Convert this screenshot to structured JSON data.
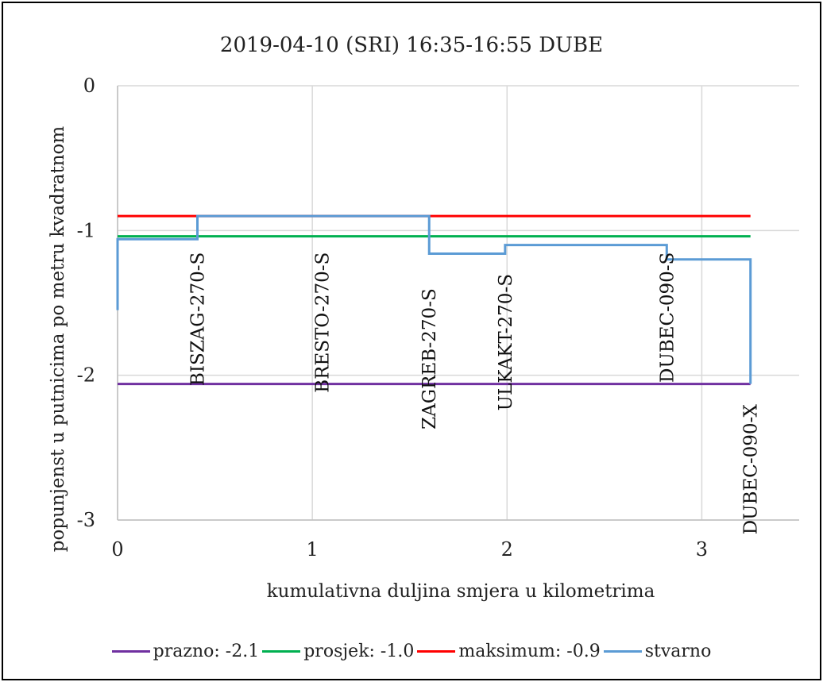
{
  "chart_data": {
    "type": "line",
    "title": "2019-04-10 (SRI) 16:35-16:55 DUBE",
    "xlabel": "kumulativna duljina smjera u kilometrima",
    "ylabel": "popunjenst u putnicima po metru kvadratnom",
    "xlim": [
      0,
      3.5
    ],
    "ylim": [
      -3,
      0
    ],
    "xticks": [
      0,
      1,
      2,
      3
    ],
    "xtick_labels": [
      "0",
      "1",
      "2",
      "3"
    ],
    "yticks": [
      0,
      -1,
      -2,
      -3
    ],
    "ytick_labels": [
      "0",
      "-1",
      "-2",
      "-3"
    ],
    "grid": true,
    "legend_position": "bottom",
    "series": [
      {
        "name": "prazno: -2.1",
        "color": "#7030a0",
        "step": false,
        "x": [
          0,
          3.25
        ],
        "y": [
          -2.06,
          -2.06
        ]
      },
      {
        "name": "prosjek: -1.0",
        "color": "#00b050",
        "step": false,
        "x": [
          0,
          3.25
        ],
        "y": [
          -1.04,
          -1.04
        ]
      },
      {
        "name": "maksimum: -0.9",
        "color": "#ff0000",
        "step": false,
        "x": [
          0,
          3.25
        ],
        "y": [
          -0.9,
          -0.9
        ]
      },
      {
        "name": "stvarno",
        "color": "#5b9bd5",
        "step": true,
        "x": [
          0,
          0,
          0.41,
          0.41,
          1.6,
          1.6,
          1.99,
          1.99,
          2.82,
          2.82,
          3.25,
          3.25
        ],
        "y": [
          -1.55,
          -1.06,
          -1.06,
          -0.9,
          -0.9,
          -1.16,
          -1.16,
          -1.1,
          -1.1,
          -1.2,
          -1.2,
          -2.06
        ]
      }
    ],
    "annotations": [
      {
        "text": "BISZAG-270-S",
        "x": 0.41,
        "y": -1.15
      },
      {
        "text": "BRESTO-270-S",
        "x": 1.05,
        "y": -1.15
      },
      {
        "text": "ZAGREB-270-S",
        "x": 1.6,
        "y": -1.4
      },
      {
        "text": "ULKAKT-270-S",
        "x": 1.99,
        "y": -1.3
      },
      {
        "text": "DUBEC-090-S",
        "x": 2.82,
        "y": -1.15
      },
      {
        "text": "DUBEC-090-X",
        "x": 3.25,
        "y": -2.2
      }
    ]
  }
}
